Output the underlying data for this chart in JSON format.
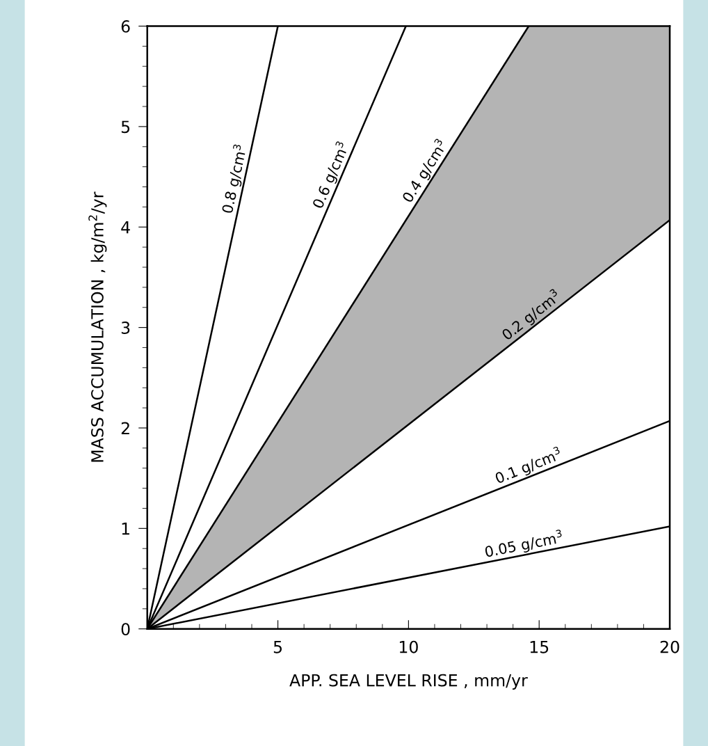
{
  "chart_data": {
    "type": "line",
    "xlabel": "APP. SEA LEVEL RISE , mm/yr",
    "ylabel": "MASS ACCUMULATION , kg/m$^{2}$/yr",
    "xlim": [
      0,
      20
    ],
    "xticks": [
      {
        "value": 0,
        "label": null
      },
      5,
      10,
      15,
      20
    ],
    "ylim": [
      0,
      6
    ],
    "yticks": [
      0,
      1,
      2,
      3,
      4,
      5,
      6
    ],
    "grid": false,
    "legend": false,
    "marker": "none",
    "line_style": "solid",
    "series": [
      {
        "name": "0.8 g/cm$^{3}$",
        "color": "#000000",
        "x": [
          0,
          5.0
        ],
        "values": [
          0,
          6
        ]
      },
      {
        "name": "0.6 g/cm$^{3}$",
        "color": "#000000",
        "x": [
          0,
          9.9
        ],
        "values": [
          0,
          6
        ]
      },
      {
        "name": "0.4 g/cm$^{3}$",
        "color": "#000000",
        "x": [
          0,
          14.6
        ],
        "values": [
          0,
          6
        ]
      },
      {
        "name": "0.2 g/cm$^{3}$",
        "color": "#000000",
        "x": [
          0,
          14.6,
          20
        ],
        "values": [
          0,
          2.97,
          4.07
        ],
        "lower": [
          0,
          2.97,
          4.07
        ],
        "upper": [
          0,
          6,
          6
        ]
      },
      {
        "name": "0.1 g/cm$^{3}$",
        "color": "#000000",
        "x": [
          0,
          20
        ],
        "values": [
          0,
          2.07
        ]
      },
      {
        "name": "0.05 g/cm$^{3}$",
        "color": "#000000",
        "x": [
          0,
          20
        ],
        "values": [
          0,
          1.02
        ]
      }
    ]
  }
}
